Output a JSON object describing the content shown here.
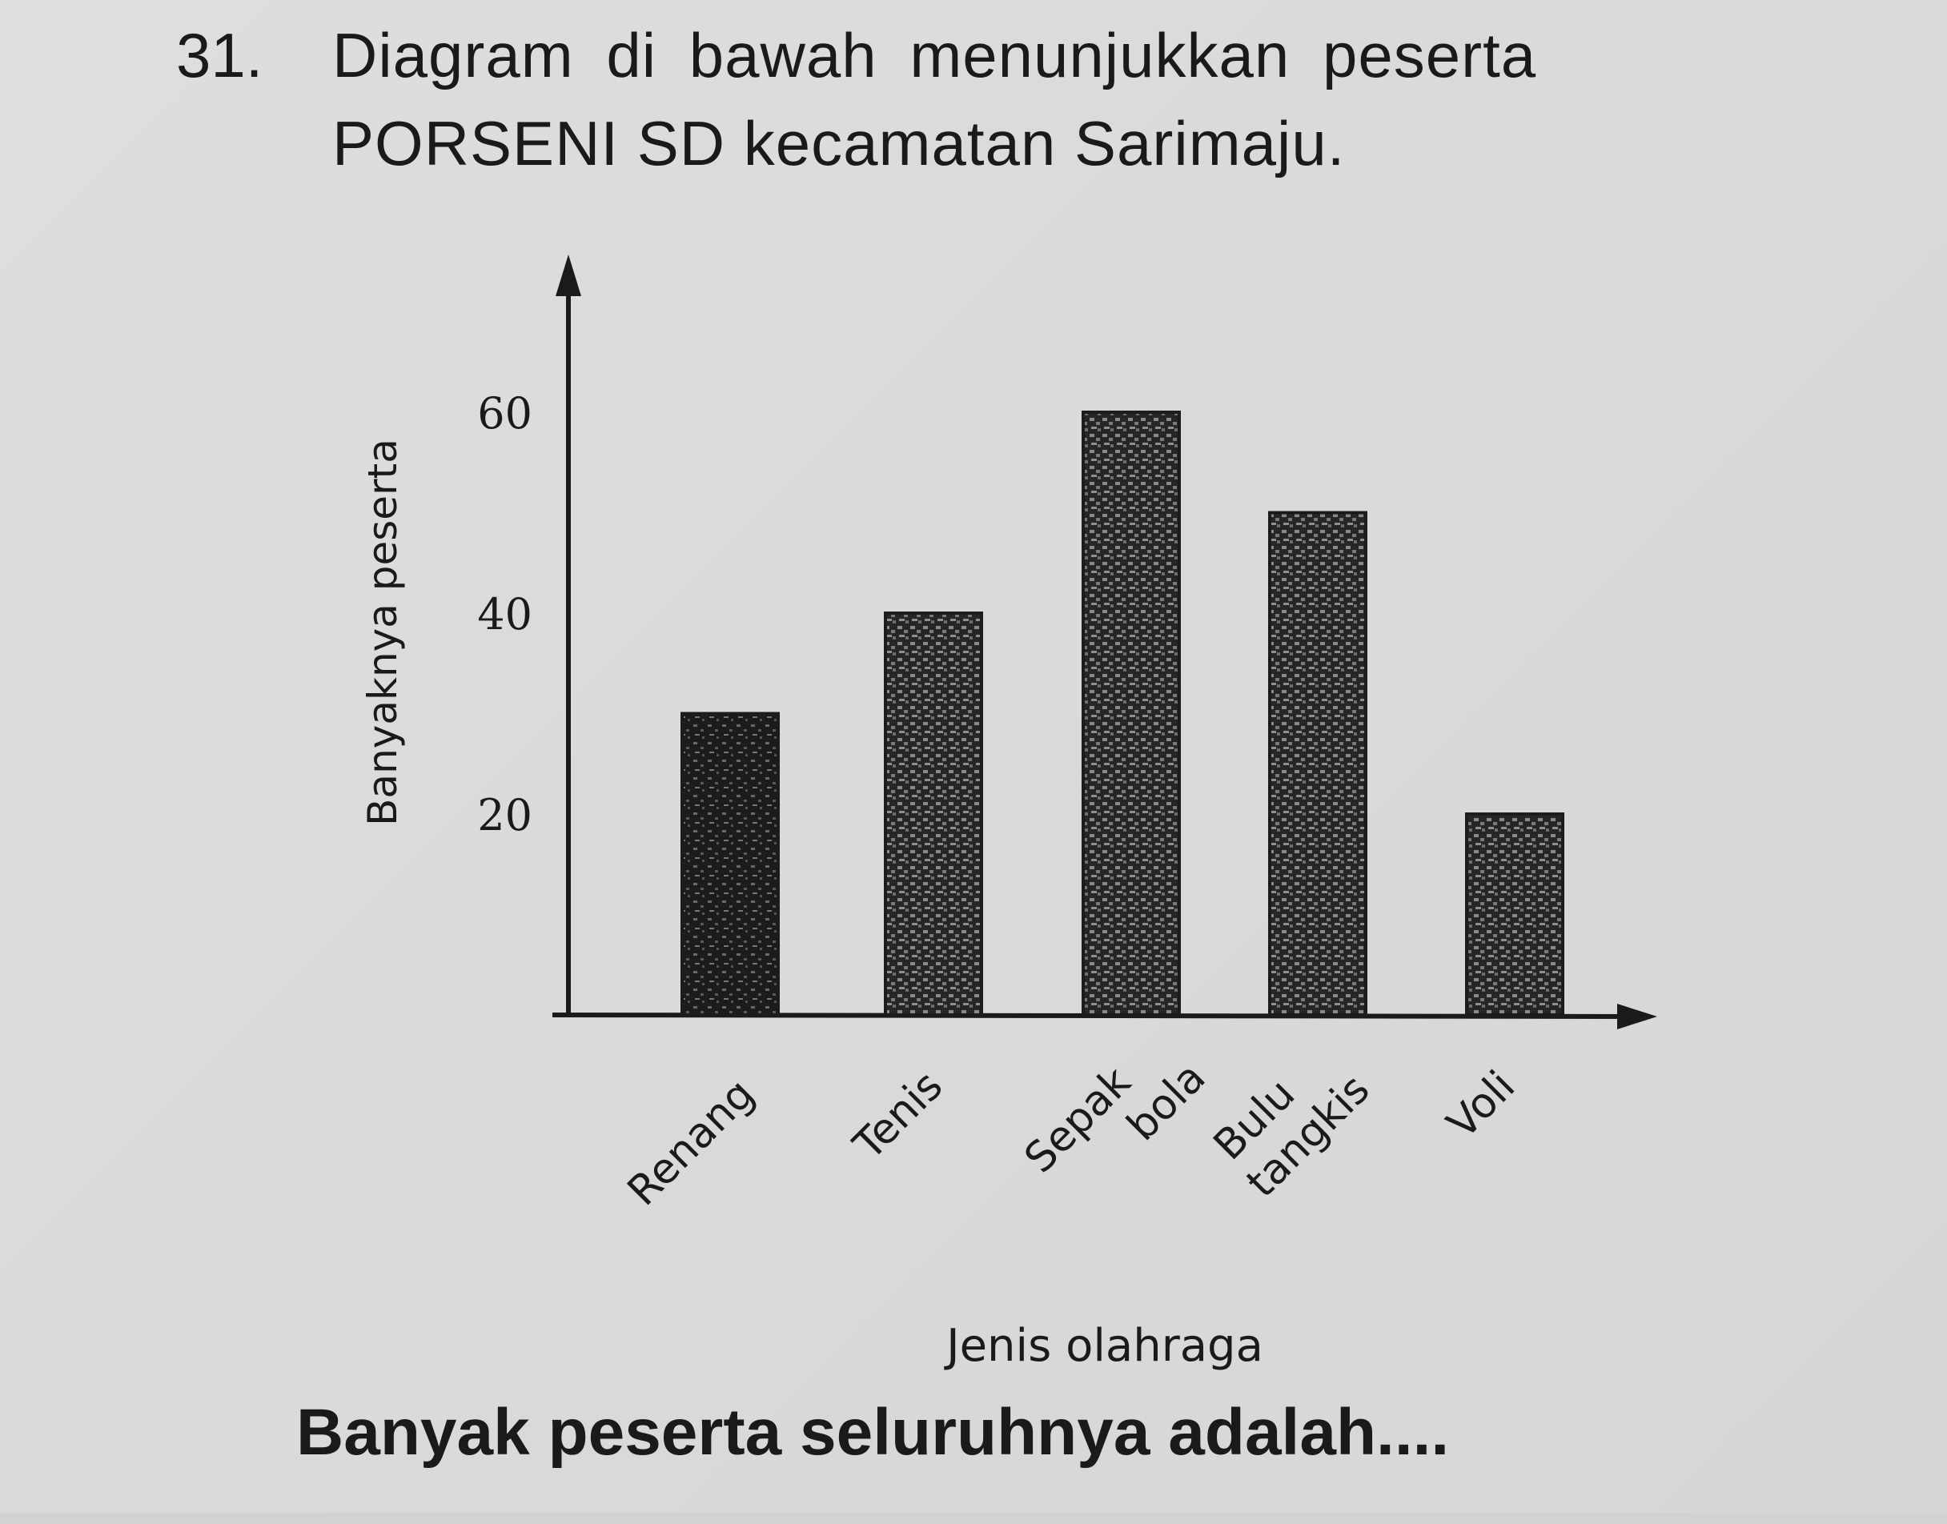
{
  "question": {
    "number": "31.",
    "line1": "Diagram di bawah menunjukkan peserta",
    "line2": "PORSENI SD kecamatan Sarimaju.",
    "footer": "Banyak peserta seluruhnya adalah...."
  },
  "chart_data": {
    "type": "bar",
    "categories": [
      "Renang",
      "Tenis",
      "Sepak bola",
      "Bulu tangkis",
      "Voli"
    ],
    "category_lines": [
      [
        "Renang"
      ],
      [
        "Tenis"
      ],
      [
        "Sepak",
        "bola"
      ],
      [
        "Bulu",
        "tangkis"
      ],
      [
        "Voli"
      ]
    ],
    "values": [
      30,
      40,
      60,
      50,
      20
    ],
    "xlabel": "Jenis olahraga",
    "ylabel": "Banyaknya peserta",
    "yticks": [
      20,
      40,
      60
    ],
    "ylim": [
      0,
      75
    ],
    "grid": false,
    "colors": {
      "bar": "#1c1c1c",
      "bar_speckle": "#6a6a6a",
      "axis": "#1a1a1a",
      "paper": "#dcdcda"
    }
  }
}
